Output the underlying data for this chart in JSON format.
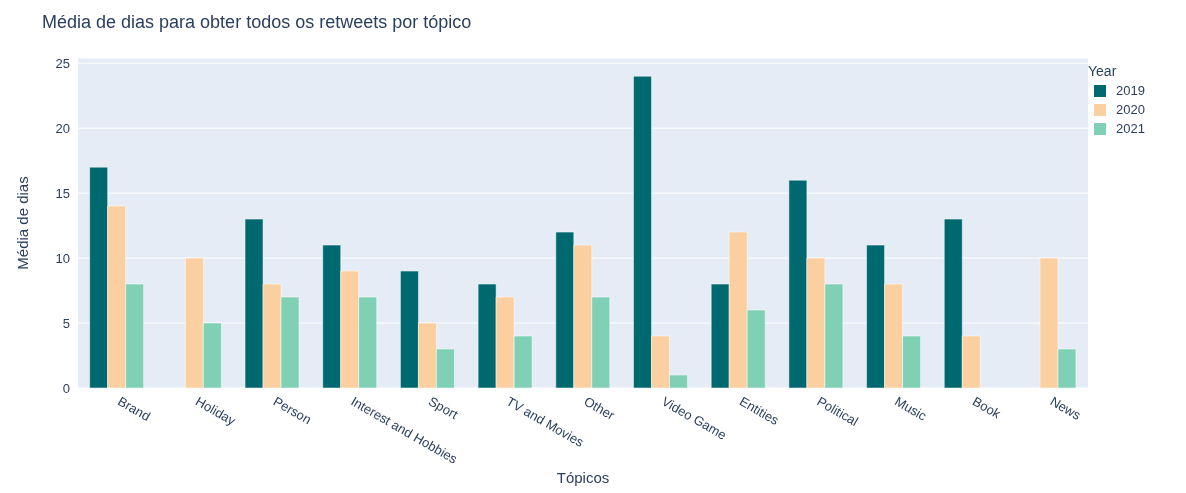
{
  "chart_data": {
    "type": "bar",
    "title": "Média de dias para obter todos os retweets por tópico",
    "xlabel": "Tópicos",
    "ylabel": "Média de dias",
    "legend_title": "Year",
    "categories": [
      "Brand",
      "Holiday",
      "Person",
      "Interest and Hobbies",
      "Sport",
      "TV and Movies",
      "Other",
      "Video Game",
      "Entities",
      "Political",
      "Music",
      "Book",
      "News"
    ],
    "series": [
      {
        "name": "2019",
        "color": "#00686f",
        "values": [
          17,
          null,
          13,
          11,
          9,
          8,
          12,
          24,
          8,
          16,
          11,
          13,
          null
        ]
      },
      {
        "name": "2020",
        "color": "#fbcf9f",
        "values": [
          14,
          10,
          8,
          9,
          5,
          7,
          11,
          4,
          12,
          10,
          8,
          4,
          10
        ]
      },
      {
        "name": "2021",
        "color": "#80d0b6",
        "values": [
          8,
          5,
          7,
          7,
          3,
          4,
          7,
          1,
          6,
          8,
          4,
          null,
          3
        ]
      }
    ],
    "ylim": [
      0,
      25.4
    ],
    "yticks": [
      0,
      5,
      10,
      15,
      20,
      25
    ],
    "grid": "y",
    "legend": "top right"
  }
}
